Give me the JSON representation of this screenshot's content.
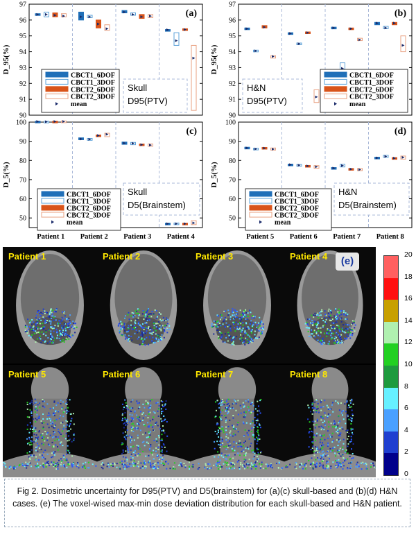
{
  "figure": {
    "caption": "Fig 2. Dosimetric uncertainty for D95(PTV) and D5(brainstem) for (a)(c) skull-based and (b)(d) H&N cases. (e) The voxel-wised max-min dose deviation distribution for each skull-based and H&N patient."
  },
  "legend": {
    "entries": [
      "CBCT1_6DOF",
      "CBCT1_3DOF",
      "CBCT2_6DOF",
      "CBCT2_3DOF",
      "mean"
    ]
  },
  "colors": {
    "cbct1_6dof": "#1f6fb8",
    "cbct1_3dof": "#5aa0d8",
    "cbct2_6dof": "#d9541a",
    "cbct2_3dof": "#e8a080",
    "annotation_border": "#a9b8d8"
  },
  "chart_data": [
    {
      "type": "box",
      "panel": "(a)",
      "annotation": [
        "Skull",
        "D95(PTV)"
      ],
      "ylabel": "D_95(%)",
      "ylim": [
        90,
        97
      ],
      "yticks": [
        90,
        91,
        92,
        93,
        94,
        95,
        96,
        97
      ],
      "categories": [
        "Patient 1",
        "Patient 2",
        "Patient 3",
        "Patient 4"
      ],
      "series": [
        {
          "name": "CBCT1_6DOF",
          "boxes": [
            [
              96.3,
              96.4
            ],
            [
              96.0,
              96.5
            ],
            [
              96.45,
              96.6
            ],
            [
              95.35,
              95.4
            ]
          ],
          "means": [
            96.35,
            96.2,
            96.5,
            95.38
          ]
        },
        {
          "name": "CBCT1_3DOF",
          "boxes": [
            [
              96.2,
              96.5
            ],
            [
              96.15,
              96.3
            ],
            [
              96.3,
              96.45
            ],
            [
              94.4,
              95.2
            ]
          ],
          "means": [
            96.35,
            96.2,
            96.35,
            94.7
          ]
        },
        {
          "name": "CBCT2_6DOF",
          "boxes": [
            [
              96.2,
              96.45
            ],
            [
              95.5,
              96.0
            ],
            [
              96.1,
              96.35
            ],
            [
              95.35,
              95.45
            ]
          ],
          "means": [
            96.3,
            95.75,
            96.2,
            95.4
          ]
        },
        {
          "name": "CBCT2_3DOF",
          "boxes": [
            [
              96.2,
              96.4
            ],
            [
              95.35,
              95.7
            ],
            [
              96.15,
              96.35
            ],
            [
              90.3,
              94.4
            ]
          ],
          "means": [
            96.25,
            95.45,
            96.25,
            93.6
          ]
        }
      ]
    },
    {
      "type": "box",
      "panel": "(b)",
      "annotation": [
        "H&N",
        "D95(PTV)"
      ],
      "ylabel": "D_95(%)",
      "ylim": [
        90,
        97
      ],
      "yticks": [
        90,
        91,
        92,
        93,
        94,
        95,
        96,
        97
      ],
      "categories": [
        "Patient 5",
        "Patient 6",
        "Patient 7",
        "Patient 8"
      ],
      "series": [
        {
          "name": "CBCT1_6DOF",
          "boxes": [
            [
              95.4,
              95.5
            ],
            [
              95.1,
              95.2
            ],
            [
              95.45,
              95.55
            ],
            [
              95.7,
              95.85
            ]
          ],
          "means": [
            95.45,
            95.15,
            95.5,
            95.8
          ]
        },
        {
          "name": "CBCT1_3DOF",
          "boxes": [
            [
              94.0,
              94.1
            ],
            [
              94.45,
              94.55
            ],
            [
              92.9,
              93.3
            ],
            [
              95.45,
              95.6
            ]
          ],
          "means": [
            94.05,
            94.5,
            92.95,
            95.5
          ]
        },
        {
          "name": "CBCT2_6DOF",
          "boxes": [
            [
              95.5,
              95.65
            ],
            [
              95.15,
              95.25
            ],
            [
              95.4,
              95.5
            ],
            [
              95.7,
              95.85
            ]
          ],
          "means": [
            95.55,
            95.2,
            95.45,
            95.8
          ]
        },
        {
          "name": "CBCT2_3DOF",
          "boxes": [
            [
              93.6,
              93.75
            ],
            [
              90.8,
              91.6
            ],
            [
              94.7,
              94.85
            ],
            [
              94.0,
              95.0
            ]
          ],
          "means": [
            93.7,
            91.15,
            94.75,
            94.4
          ]
        }
      ]
    },
    {
      "type": "box",
      "panel": "(c)",
      "annotation": [
        "Skull",
        "D5(Brainstem)"
      ],
      "ylabel": "D_5(%)",
      "ylim": [
        45,
        100
      ],
      "yticks": [
        50,
        60,
        70,
        80,
        90,
        100
      ],
      "categories": [
        "Patient 1",
        "Patient 2",
        "Patient 3",
        "Patient 4"
      ],
      "series": [
        {
          "name": "CBCT1_6DOF",
          "boxes": [
            [
              100.1,
              100.5
            ],
            [
              90.8,
              91.8
            ],
            [
              88.4,
              89.6
            ],
            [
              46.8,
              47.3
            ]
          ],
          "means": [
            100.3,
            91.2,
            89.0,
            47.0
          ]
        },
        {
          "name": "CBCT1_3DOF",
          "boxes": [
            [
              100.0,
              100.5
            ],
            [
              90.5,
              91.5
            ],
            [
              88.2,
              89.4
            ],
            [
              46.7,
              47.4
            ]
          ],
          "means": [
            100.2,
            91.0,
            88.9,
            47.0
          ]
        },
        {
          "name": "CBCT2_6DOF",
          "boxes": [
            [
              100.1,
              100.5
            ],
            [
              92.6,
              93.3
            ],
            [
              87.8,
              88.6
            ],
            [
              46.6,
              47.3
            ]
          ],
          "means": [
            100.3,
            93.0,
            88.2,
            47.0
          ]
        },
        {
          "name": "CBCT2_3DOF",
          "boxes": [
            [
              100.0,
              100.6
            ],
            [
              92.4,
              94.2
            ],
            [
              87.4,
              88.6
            ],
            [
              46.5,
              48.6
            ]
          ],
          "means": [
            100.3,
            93.6,
            88.0,
            47.4
          ]
        }
      ]
    },
    {
      "type": "box",
      "panel": "(d)",
      "annotation": [
        "H&N",
        "D5(Brainstem)"
      ],
      "ylabel": "D_5(%)",
      "ylim": [
        45,
        100
      ],
      "yticks": [
        50,
        60,
        70,
        80,
        90,
        100
      ],
      "categories": [
        "Patient 5",
        "Patient 6",
        "Patient 7",
        "Patient 8"
      ],
      "series": [
        {
          "name": "CBCT1_6DOF",
          "boxes": [
            [
              86.2,
              86.9
            ],
            [
              77.5,
              78.1
            ],
            [
              75.6,
              76.3
            ],
            [
              81.0,
              81.7
            ]
          ],
          "means": [
            86.5,
            77.8,
            76.0,
            81.3
          ]
        },
        {
          "name": "CBCT1_3DOF",
          "boxes": [
            [
              85.5,
              86.4
            ],
            [
              77.2,
              77.9
            ],
            [
              76.6,
              78.0
            ],
            [
              81.6,
              82.7
            ]
          ],
          "means": [
            86.0,
            77.5,
            77.3,
            82.1
          ]
        },
        {
          "name": "CBCT2_6DOF",
          "boxes": [
            [
              86.2,
              86.8
            ],
            [
              76.8,
              77.4
            ],
            [
              75.2,
              75.8
            ],
            [
              80.8,
              81.5
            ]
          ],
          "means": [
            86.4,
            77.1,
            75.5,
            81.2
          ]
        },
        {
          "name": "CBCT2_3DOF",
          "boxes": [
            [
              85.4,
              86.5
            ],
            [
              75.9,
              77.3
            ],
            [
              74.7,
              75.8
            ],
            [
              80.7,
              82.3
            ]
          ],
          "means": [
            85.9,
            76.7,
            75.2,
            81.6
          ]
        }
      ]
    }
  ],
  "panel_e": {
    "tag": "(e)",
    "images": [
      "Patient 1",
      "Patient 2",
      "Patient 3",
      "Patient 4",
      "Patient 5",
      "Patient 6",
      "Patient 7",
      "Patient 8"
    ],
    "colorbar": {
      "ticks": [
        0,
        2,
        4,
        6,
        8,
        10,
        12,
        14,
        16,
        18,
        20
      ],
      "colors": [
        "#00008b",
        "#1f3fd0",
        "#4aa0ff",
        "#66f0ff",
        "#1e9a3e",
        "#22d022",
        "#b0f0b0",
        "#c8a000",
        "#ff1010",
        "#ff6060",
        "#a000c0"
      ]
    }
  }
}
